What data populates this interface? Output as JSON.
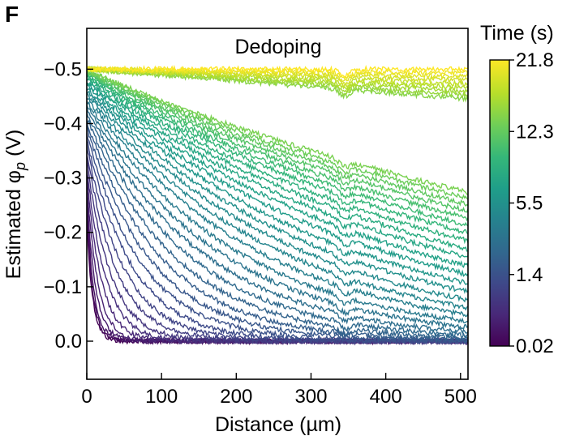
{
  "panel_label": "F",
  "chart_data": {
    "type": "line",
    "title": "Dedoping",
    "xlabel": "Distance (µm)",
    "ylabel_main": "Estimated φ",
    "ylabel_sub": "p",
    "ylabel_unit": " (V)",
    "xlim": [
      0,
      510
    ],
    "ylim": [
      0.07,
      -0.575
    ],
    "y_inverted": true,
    "x_ticks": [
      0,
      100,
      200,
      300,
      400,
      500
    ],
    "x_tick_labels": [
      "0",
      "100",
      "200",
      "300",
      "400",
      "500"
    ],
    "y_ticks": [
      0.0,
      -0.1,
      -0.2,
      -0.3,
      -0.4,
      -0.5
    ],
    "y_tick_labels": [
      "0.0",
      "−0.1",
      "−0.2",
      "−0.3",
      "−0.4",
      "−0.5"
    ],
    "grid": false,
    "colorbar": {
      "label": "Time (s)",
      "colormap": "viridis",
      "ticks": [
        "21.8",
        "12.3",
        "5.5",
        "1.4",
        "0.02"
      ],
      "tick_fraction": [
        1.0,
        0.75,
        0.5,
        0.25,
        0.0
      ]
    },
    "series_summary": {
      "count": 45,
      "description": "Family of noisy curves; potential at each distance vs time. Early times decay quickly to 0 near x=0; later times approach -0.5 V across the full distance.",
      "start_values": [
        -0.22,
        -0.3,
        -0.36,
        -0.4,
        -0.42,
        -0.435,
        -0.445,
        -0.455,
        -0.46,
        -0.465,
        -0.47,
        -0.475,
        -0.48,
        -0.485,
        -0.49,
        -0.495,
        -0.5
      ],
      "end_values_at_510um": [
        0.0,
        0.0,
        0.0,
        -0.01,
        -0.015,
        -0.02,
        -0.03,
        -0.04,
        -0.05,
        -0.07,
        -0.09,
        -0.11,
        -0.14,
        -0.17,
        -0.2,
        -0.23,
        -0.26,
        -0.29,
        -0.32,
        -0.35,
        -0.38,
        -0.41,
        -0.44,
        -0.46,
        -0.48,
        -0.5
      ]
    },
    "colors": {
      "viridis": [
        "#440154",
        "#482878",
        "#3e4989",
        "#31688e",
        "#26828e",
        "#1f9e89",
        "#35b779",
        "#6ece58",
        "#b5de2b",
        "#fde725"
      ]
    }
  }
}
